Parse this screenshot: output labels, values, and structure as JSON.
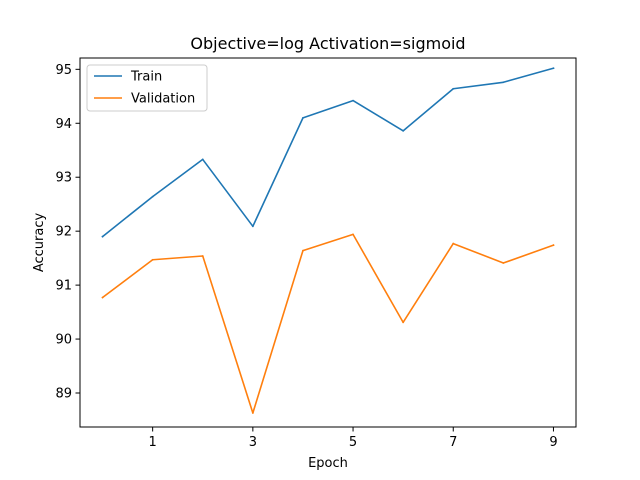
{
  "chart_data": {
    "type": "line",
    "title": "Objective=log Activation=sigmoid",
    "xlabel": "Epoch",
    "ylabel": "Accuracy",
    "x": [
      0,
      1,
      2,
      3,
      4,
      5,
      6,
      7,
      8,
      9
    ],
    "xticks": [
      "1",
      "3",
      "5",
      "7",
      "9"
    ],
    "xtick_values": [
      1,
      3,
      5,
      7,
      9
    ],
    "yticks": [
      "89",
      "90",
      "91",
      "92",
      "93",
      "94",
      "95"
    ],
    "ytick_values": [
      89,
      90,
      91,
      92,
      93,
      94,
      95
    ],
    "xlim": [
      -0.45,
      9.45
    ],
    "ylim": [
      88.37,
      95.21
    ],
    "grid": false,
    "legend_position": "top-left",
    "series": [
      {
        "name": "Train",
        "color": "#1f77b4",
        "values": [
          91.9,
          92.64,
          93.33,
          92.09,
          94.1,
          94.42,
          93.86,
          94.64,
          94.76,
          95.02
        ]
      },
      {
        "name": "Validation",
        "color": "#ff7f0e",
        "values": [
          90.77,
          91.47,
          91.54,
          88.63,
          91.64,
          91.94,
          90.31,
          91.77,
          91.41,
          91.74
        ]
      }
    ]
  }
}
